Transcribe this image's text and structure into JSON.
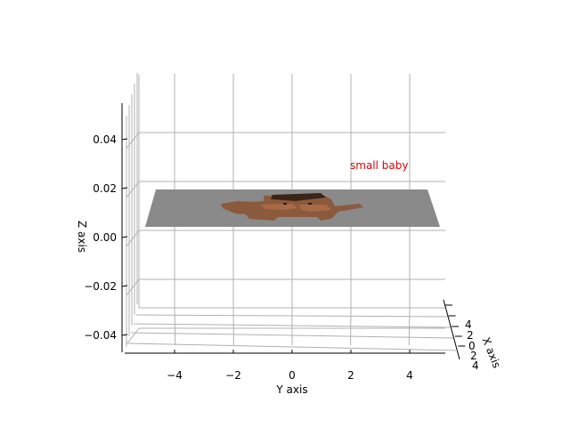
{
  "chart_data": {
    "type": "surface-3d",
    "title": "",
    "xlabel": "X axis",
    "ylabel": "Y axis",
    "zlabel": "Z axis",
    "y_ticks": [
      -4,
      -2,
      0,
      2,
      4
    ],
    "y_tick_labels": [
      "−4",
      "−2",
      "0",
      "2",
      "4"
    ],
    "z_ticks": [
      -0.04,
      -0.02,
      0.0,
      0.02,
      0.04
    ],
    "z_tick_labels": [
      "−0.04",
      "−0.02",
      "0.00",
      "0.02",
      "0.04"
    ],
    "x_ticks": [
      4,
      2,
      0,
      2,
      4
    ],
    "x_tick_labels": [
      "4",
      "2",
      "0",
      "2",
      "4"
    ],
    "ylim": [
      -5.5,
      5.5
    ],
    "zlim": [
      -0.05,
      0.05
    ],
    "surface_z": 0.0,
    "grid": true,
    "annotation": {
      "text": "small baby",
      "color": "#dd0000",
      "y": 2,
      "z": 0.028
    },
    "colors": {
      "plane": "#8a8a8a",
      "figure": "#8b5a3c",
      "figure_dark": "#3a2418",
      "grid": "#b0b0b0"
    }
  }
}
